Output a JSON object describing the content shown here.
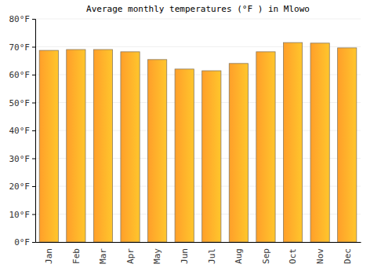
{
  "chart_data": {
    "type": "bar",
    "title": "Average monthly temperatures (°F ) in Mlowo",
    "categories": [
      "Jan",
      "Feb",
      "Mar",
      "Apr",
      "May",
      "Jun",
      "Jul",
      "Aug",
      "Sep",
      "Oct",
      "Nov",
      "Dec"
    ],
    "values": [
      68.7,
      69.0,
      69.0,
      68.2,
      65.4,
      62.0,
      61.4,
      64.0,
      68.2,
      71.5,
      71.3,
      69.6
    ],
    "color": "#ff9f2a",
    "ylim": [
      0,
      80
    ],
    "yticks": [
      {
        "value": 0,
        "label": "0°F"
      },
      {
        "value": 10,
        "label": "10°F"
      },
      {
        "value": 20,
        "label": "20°F"
      },
      {
        "value": 30,
        "label": "30°F"
      },
      {
        "value": 40,
        "label": "40°F"
      },
      {
        "value": 50,
        "label": "50°F"
      },
      {
        "value": 60,
        "label": "60°F"
      },
      {
        "value": 70,
        "label": "70°F"
      },
      {
        "value": 80,
        "label": "80°F"
      }
    ],
    "grid": true
  }
}
